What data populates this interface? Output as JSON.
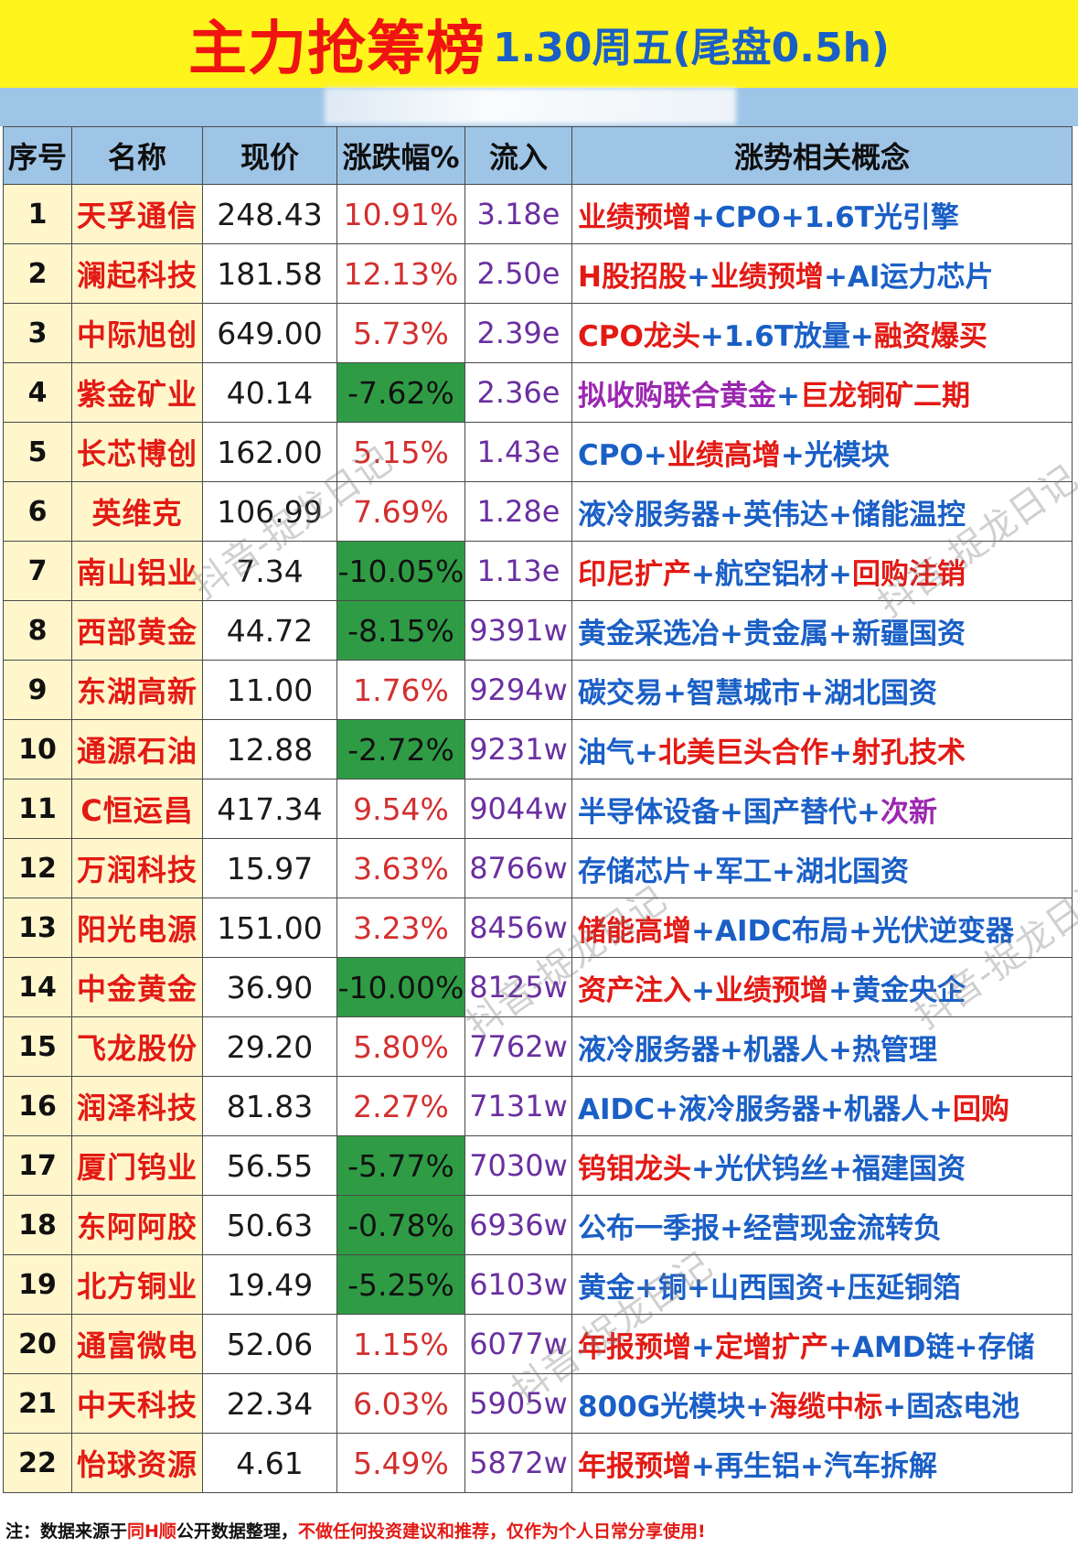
{
  "title": {
    "main": "主力抢筹榜",
    "sub": "1.30周五(尾盘0.5h)"
  },
  "headers": [
    "序号",
    "名称",
    "现价",
    "涨跌幅%",
    "流入",
    "涨势相关概念"
  ],
  "rows": [
    {
      "rank": "1",
      "name": "天孚通信",
      "price": "248.43",
      "change": "10.91%",
      "neg": false,
      "flow": "3.18e",
      "concept": [
        [
          "业绩预增",
          "red"
        ],
        [
          "CPO",
          "blue"
        ],
        [
          "1.6T光引擎",
          "blue"
        ]
      ]
    },
    {
      "rank": "2",
      "name": "澜起科技",
      "price": "181.58",
      "change": "12.13%",
      "neg": false,
      "flow": "2.50e",
      "concept": [
        [
          "H股招股",
          "red"
        ],
        [
          "业绩预增",
          "red"
        ],
        [
          "AI运力芯片",
          "blue"
        ]
      ]
    },
    {
      "rank": "3",
      "name": "中际旭创",
      "price": "649.00",
      "change": "5.73%",
      "neg": false,
      "flow": "2.39e",
      "concept": [
        [
          "CPO龙头",
          "red"
        ],
        [
          "1.6T放量",
          "blue"
        ],
        [
          "融资爆买",
          "red"
        ]
      ]
    },
    {
      "rank": "4",
      "name": "紫金矿业",
      "price": "40.14",
      "change": "-7.62%",
      "neg": true,
      "flow": "2.36e",
      "concept": [
        [
          "拟收购联合黄金",
          "purple"
        ],
        [
          "巨龙铜矿二期",
          "red"
        ]
      ]
    },
    {
      "rank": "5",
      "name": "长芯博创",
      "price": "162.00",
      "change": "5.15%",
      "neg": false,
      "flow": "1.43e",
      "concept": [
        [
          "CPO",
          "blue"
        ],
        [
          "业绩高增",
          "red"
        ],
        [
          "光模块",
          "blue"
        ]
      ]
    },
    {
      "rank": "6",
      "name": "英维克",
      "price": "106.99",
      "change": "7.69%",
      "neg": false,
      "flow": "1.28e",
      "concept": [
        [
          "液冷服务器",
          "blue"
        ],
        [
          "英伟达",
          "blue"
        ],
        [
          "储能温控",
          "blue"
        ]
      ]
    },
    {
      "rank": "7",
      "name": "南山铝业",
      "price": "7.34",
      "change": "-10.05%",
      "neg": true,
      "flow": "1.13e",
      "concept": [
        [
          "印尼扩产",
          "red"
        ],
        [
          "航空铝材",
          "blue"
        ],
        [
          "回购注销",
          "red"
        ]
      ]
    },
    {
      "rank": "8",
      "name": "西部黄金",
      "price": "44.72",
      "change": "-8.15%",
      "neg": true,
      "flow": "9391w",
      "concept": [
        [
          "黄金采选冶",
          "blue"
        ],
        [
          "贵金属",
          "blue"
        ],
        [
          "新疆国资",
          "blue"
        ]
      ]
    },
    {
      "rank": "9",
      "name": "东湖高新",
      "price": "11.00",
      "change": "1.76%",
      "neg": false,
      "flow": "9294w",
      "concept": [
        [
          "碳交易",
          "blue"
        ],
        [
          "智慧城市",
          "blue"
        ],
        [
          "湖北国资",
          "blue"
        ]
      ]
    },
    {
      "rank": "10",
      "name": "通源石油",
      "price": "12.88",
      "change": "-2.72%",
      "neg": true,
      "flow": "9231w",
      "concept": [
        [
          "油气",
          "blue"
        ],
        [
          "北美巨头合作",
          "red"
        ],
        [
          "射孔技术",
          "red"
        ]
      ]
    },
    {
      "rank": "11",
      "name": "C恒运昌",
      "price": "417.34",
      "change": "9.54%",
      "neg": false,
      "flow": "9044w",
      "concept": [
        [
          "半导体设备",
          "blue"
        ],
        [
          "国产替代",
          "blue"
        ],
        [
          "次新",
          "purple"
        ]
      ]
    },
    {
      "rank": "12",
      "name": "万润科技",
      "price": "15.97",
      "change": "3.63%",
      "neg": false,
      "flow": "8766w",
      "concept": [
        [
          "存储芯片",
          "blue"
        ],
        [
          "军工",
          "blue"
        ],
        [
          "湖北国资",
          "blue"
        ]
      ]
    },
    {
      "rank": "13",
      "name": "阳光电源",
      "price": "151.00",
      "change": "3.23%",
      "neg": false,
      "flow": "8456w",
      "concept": [
        [
          "储能高增",
          "red"
        ],
        [
          "AIDC布局",
          "blue"
        ],
        [
          "光伏逆变器",
          "blue"
        ]
      ]
    },
    {
      "rank": "14",
      "name": "中金黄金",
      "price": "36.90",
      "change": "-10.00%",
      "neg": true,
      "flow": "8125w",
      "concept": [
        [
          "资产注入",
          "red"
        ],
        [
          "业绩预增",
          "red"
        ],
        [
          "黄金央企",
          "blue"
        ]
      ]
    },
    {
      "rank": "15",
      "name": "飞龙股份",
      "price": "29.20",
      "change": "5.80%",
      "neg": false,
      "flow": "7762w",
      "concept": [
        [
          "液冷服务器",
          "blue"
        ],
        [
          "机器人",
          "blue"
        ],
        [
          "热管理",
          "blue"
        ]
      ]
    },
    {
      "rank": "16",
      "name": "润泽科技",
      "price": "81.83",
      "change": "2.27%",
      "neg": false,
      "flow": "7131w",
      "concept": [
        [
          "AIDC",
          "blue"
        ],
        [
          "液冷服务器",
          "blue"
        ],
        [
          "机器人",
          "blue"
        ],
        [
          "回购",
          "red"
        ]
      ]
    },
    {
      "rank": "17",
      "name": "厦门钨业",
      "price": "56.55",
      "change": "-5.77%",
      "neg": true,
      "flow": "7030w",
      "concept": [
        [
          "钨钼龙头",
          "red"
        ],
        [
          "光伏钨丝",
          "blue"
        ],
        [
          "福建国资",
          "blue"
        ]
      ]
    },
    {
      "rank": "18",
      "name": "东阿阿胶",
      "price": "50.63",
      "change": "-0.78%",
      "neg": true,
      "flow": "6936w",
      "concept": [
        [
          "公布一季报",
          "blue"
        ],
        [
          "经营现金流转负",
          "blue"
        ]
      ]
    },
    {
      "rank": "19",
      "name": "北方铜业",
      "price": "19.49",
      "change": "-5.25%",
      "neg": true,
      "flow": "6103w",
      "concept": [
        [
          "黄金",
          "blue"
        ],
        [
          "铜",
          "blue"
        ],
        [
          "山西国资",
          "blue"
        ],
        [
          "压延铜箔",
          "blue"
        ]
      ]
    },
    {
      "rank": "20",
      "name": "通富微电",
      "price": "52.06",
      "change": "1.15%",
      "neg": false,
      "flow": "6077w",
      "concept": [
        [
          "年报预增",
          "red"
        ],
        [
          "定增扩产",
          "red"
        ],
        [
          "AMD链",
          "blue"
        ],
        [
          "存储",
          "blue"
        ]
      ]
    },
    {
      "rank": "21",
      "name": "中天科技",
      "price": "22.34",
      "change": "6.03%",
      "neg": false,
      "flow": "5905w",
      "concept": [
        [
          "800G光模块",
          "blue"
        ],
        [
          "海缆中标",
          "red"
        ],
        [
          "固态电池",
          "blue"
        ]
      ]
    },
    {
      "rank": "22",
      "name": "怡球资源",
      "price": "4.61",
      "change": "5.49%",
      "neg": false,
      "flow": "5872w",
      "concept": [
        [
          "年报预增",
          "red"
        ],
        [
          "再生铝",
          "blue"
        ],
        [
          "汽车拆解",
          "blue"
        ]
      ]
    }
  ],
  "footer": {
    "part1": "注：数据来源于",
    "part2": "同H顺",
    "part3": "公开数据整理，",
    "part4": "不做任何投资建议和推荐，仅作为个人日常分享使用!"
  },
  "watermarks": [
    "抖音-捉龙日记",
    "抖音-捉龙日记",
    "抖音-捉龙日记",
    "抖音-捉龙日记",
    "抖音-捉龙日记"
  ],
  "colors": {
    "title_bg": "#fff41c",
    "title_red": "#ef1411",
    "title_blue": "#1a5fc6",
    "header_bg": "#9ec4e6",
    "name_bg": "#fff6cc",
    "neg_bg": "#2f9c45"
  }
}
